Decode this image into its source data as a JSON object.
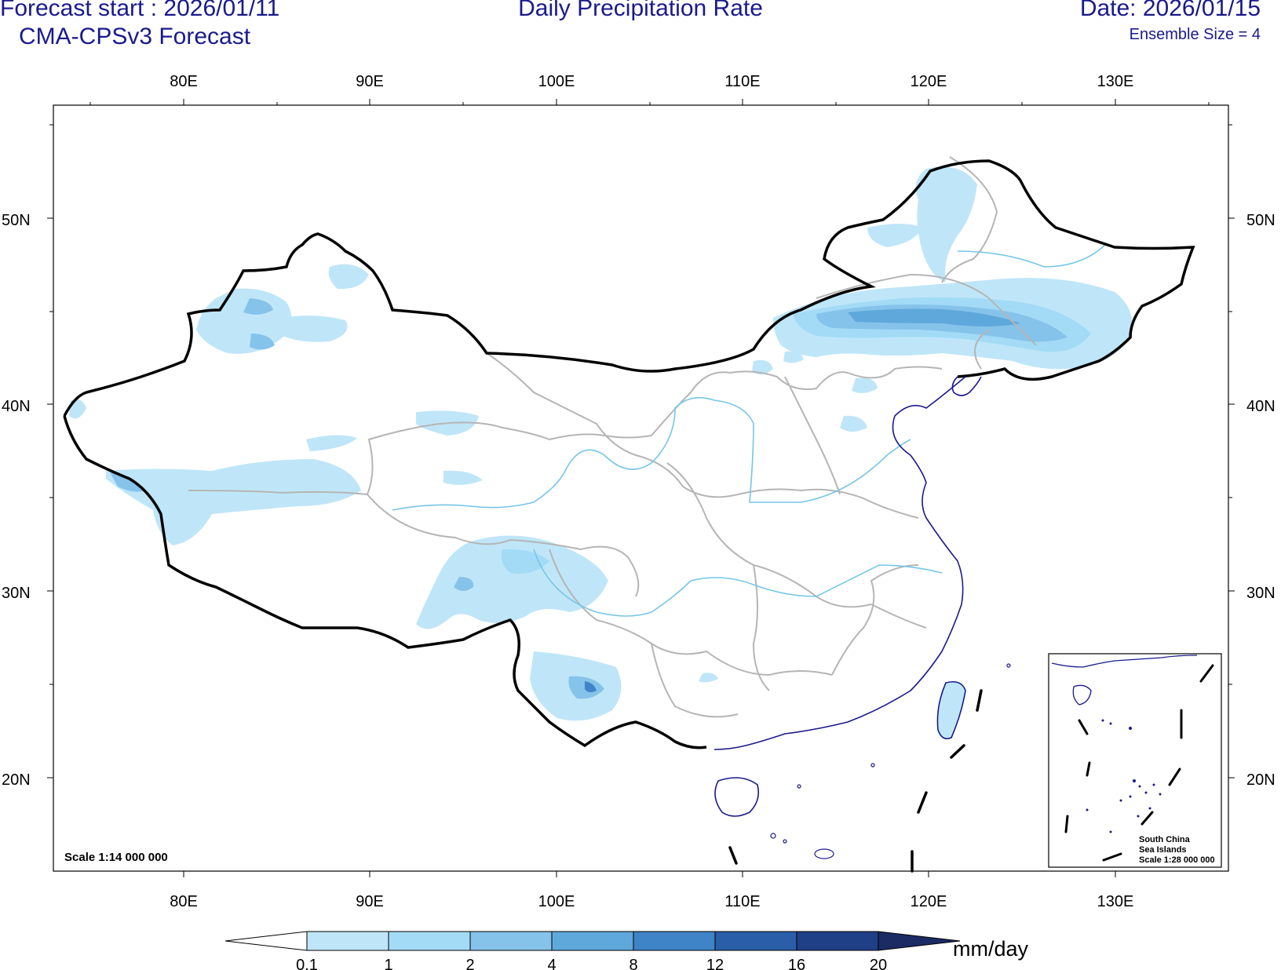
{
  "header": {
    "forecast_start": "Forecast start : 2026/01/11",
    "model": "CMA-CPSv3 Forecast",
    "title": "Daily Precipitation Rate",
    "date": "Date: 2026/01/15",
    "ensemble": "Ensemble Size = 4"
  },
  "axes": {
    "lon_labels": [
      "80E",
      "90E",
      "100E",
      "110E",
      "120E",
      "130E"
    ],
    "lat_labels": [
      "50N",
      "40N",
      "30N",
      "20N"
    ]
  },
  "scale_label": "Scale 1:14 000 000",
  "inset": {
    "title_line1": "South China",
    "title_line2": "Sea Islands",
    "scale": "Scale 1:28 000 000"
  },
  "colorbar": {
    "units": "mm/day",
    "levels": [
      "0.1",
      "1",
      "2",
      "4",
      "8",
      "12",
      "16",
      "20"
    ],
    "colors": [
      "#ffffff",
      "#bfe6f8",
      "#a3dbf6",
      "#86c3ea",
      "#5fa8dc",
      "#3e84c6",
      "#2a5ea8",
      "#1f3f86",
      "#1c2b64"
    ]
  }
}
